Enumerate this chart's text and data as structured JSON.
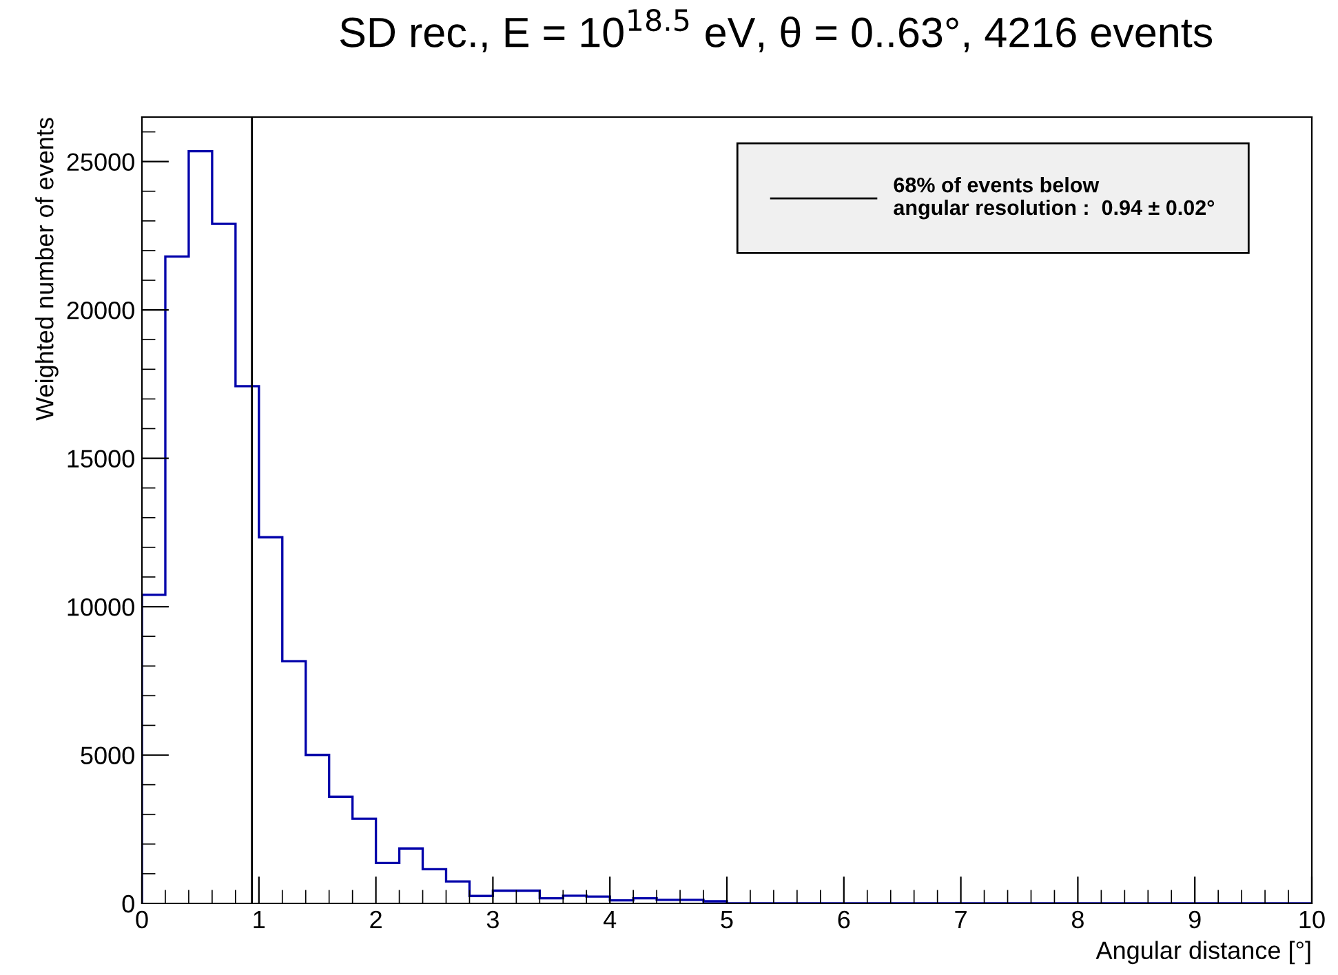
{
  "chart_data": {
    "type": "histogram",
    "title": "SD rec., E = 10$^{18.5}$ eV, θ = 0..63°, 4216 events",
    "xlabel": "Angular distance [°]",
    "ylabel": "Weighted number of events",
    "bins": [
      0,
      0.2,
      0.4,
      0.6,
      0.8,
      1.0,
      1.2,
      1.4,
      1.6,
      1.8,
      2.0,
      2.2,
      2.4,
      2.6,
      2.8,
      3.0,
      3.2,
      3.4,
      3.6,
      3.8,
      4.0,
      4.2,
      4.4,
      4.6,
      4.8,
      5.0,
      5.2,
      5.4,
      5.6,
      5.8,
      6.0,
      6.2,
      6.4,
      6.6,
      6.8,
      7.0,
      7.2,
      7.4,
      7.6,
      7.8,
      8.0,
      8.2,
      8.4,
      8.6,
      8.8,
      9.0,
      9.2,
      9.4,
      9.6,
      9.8,
      10.0
    ],
    "values": [
      10400,
      21800,
      25350,
      22900,
      17430,
      12340,
      8160,
      5000,
      3590,
      2850,
      1360,
      1850,
      1150,
      740,
      250,
      430,
      430,
      170,
      260,
      230,
      100,
      170,
      120,
      120,
      70,
      0,
      0,
      0,
      0,
      0,
      0,
      0,
      0,
      0,
      0,
      0,
      0,
      0,
      0,
      0,
      0,
      0,
      0,
      0,
      0,
      0,
      0,
      0,
      0,
      0
    ],
    "color": "#0000aa",
    "xlim": [
      0,
      10
    ],
    "ylim": [
      0,
      26500
    ],
    "xticks": [
      0,
      1,
      2,
      3,
      4,
      5,
      6,
      7,
      8,
      9,
      10
    ],
    "yticks": [
      0,
      5000,
      10000,
      15000,
      20000,
      25000
    ],
    "ref_lines": [
      {
        "axis": "x",
        "value": 0.94,
        "label": "68% of events below\nangular resolution :  0.94 ± 0.02°",
        "color": "#000000"
      }
    ],
    "legend": "top right",
    "grid": false
  }
}
